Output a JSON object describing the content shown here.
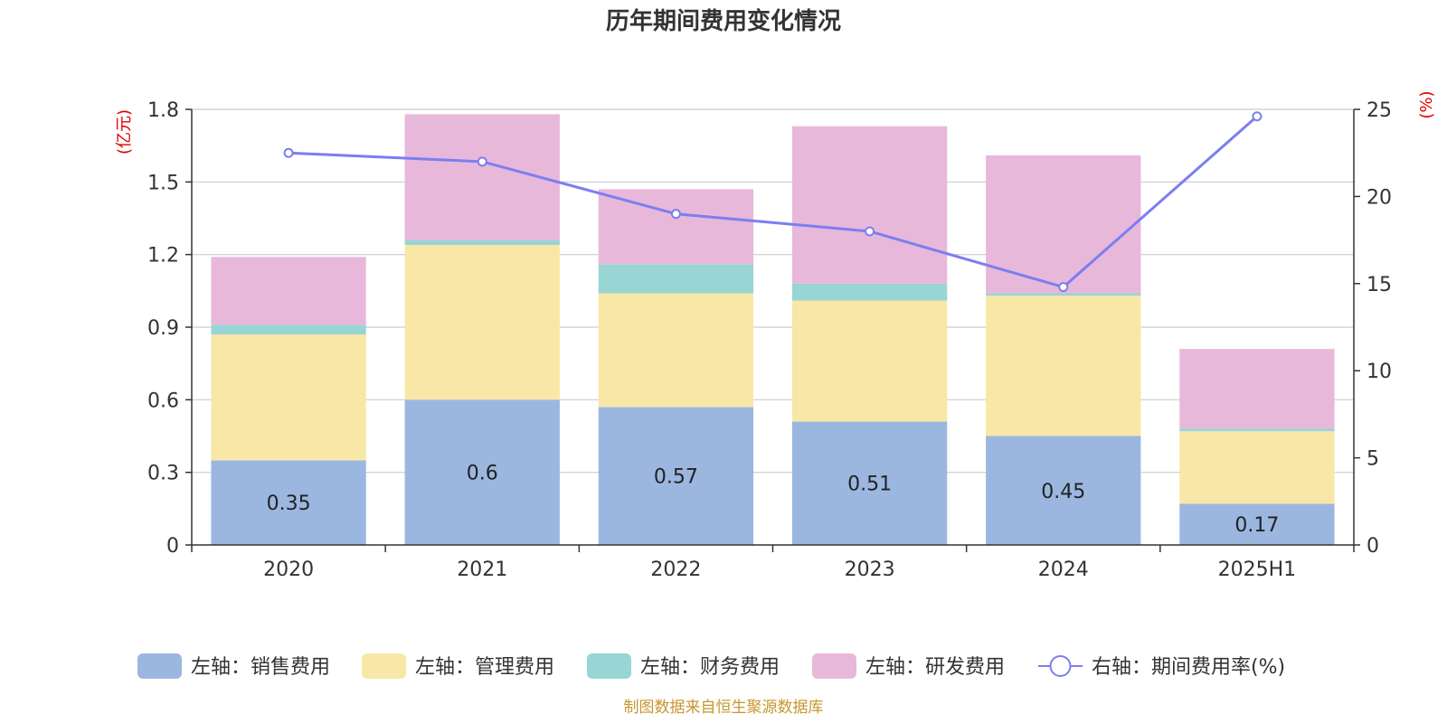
{
  "chart_data": {
    "type": "bar",
    "title": "历年期间费用变化情况",
    "categories": [
      "2020",
      "2021",
      "2022",
      "2023",
      "2024",
      "2025H1"
    ],
    "y_left": {
      "unit": "(亿元)",
      "range": [
        0,
        1.8
      ],
      "ticks": [
        "0",
        "0.3",
        "0.6",
        "0.9",
        "1.2",
        "1.5",
        "1.8"
      ]
    },
    "y_right": {
      "unit": "(%)",
      "range": [
        0,
        25
      ],
      "ticks": [
        "0",
        "5",
        "10",
        "15",
        "20",
        "25"
      ]
    },
    "grid": true,
    "legend_position": "bottom",
    "series": [
      {
        "name": "左轴：销售费用",
        "type": "bar",
        "axis": "left",
        "color": "#9bb7e0",
        "values": [
          0.35,
          0.6,
          0.57,
          0.51,
          0.45,
          0.17
        ],
        "labels": [
          "0.35",
          "0.6",
          "0.57",
          "0.51",
          "0.45",
          "0.17"
        ]
      },
      {
        "name": "左轴：管理费用",
        "type": "bar",
        "axis": "left",
        "color": "#f8e7a7",
        "values": [
          0.52,
          0.64,
          0.47,
          0.5,
          0.58,
          0.3
        ]
      },
      {
        "name": "左轴：财务费用",
        "type": "bar",
        "axis": "left",
        "color": "#98d5d5",
        "values": [
          0.04,
          0.02,
          0.12,
          0.07,
          0.01,
          0.01
        ]
      },
      {
        "name": "左轴：研发费用",
        "type": "bar",
        "axis": "left",
        "color": "#e8b8da",
        "values": [
          0.28,
          0.52,
          0.31,
          0.65,
          0.57,
          0.33
        ]
      },
      {
        "name": "右轴：期间费用率(%)",
        "type": "line",
        "axis": "right",
        "color": "#7b7ef0",
        "values": [
          22.5,
          22.0,
          19.0,
          18.0,
          14.8,
          24.6
        ]
      }
    ],
    "source": "制图数据来自恒生聚源数据库"
  }
}
